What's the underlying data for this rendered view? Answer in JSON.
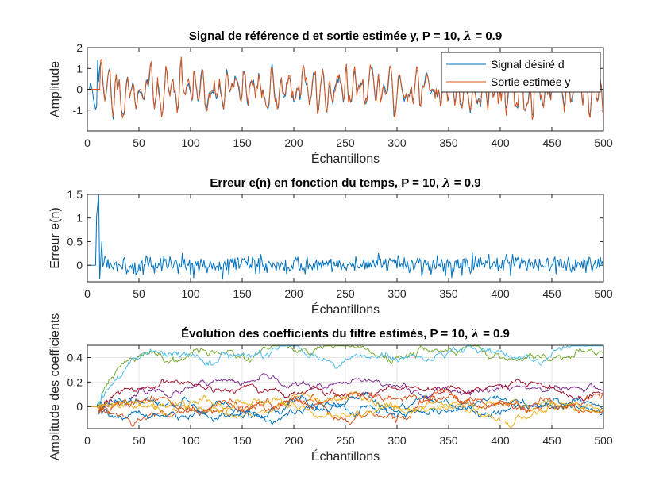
{
  "chart_data": [
    {
      "type": "line",
      "title": "Signal de référence d et sortie estimée y, P = 10, λ = 0.9",
      "xlabel": "Échantillons",
      "ylabel": "Amplitude",
      "xlim": [
        0,
        500
      ],
      "ylim": [
        -2,
        2
      ],
      "xticks": [
        0,
        50,
        100,
        150,
        200,
        250,
        300,
        350,
        400,
        450,
        500
      ],
      "yticks": [
        -1,
        0,
        1,
        2
      ],
      "grid": false,
      "legend": {
        "placement": "top-right",
        "entries": [
          "Signal désiré d",
          "Sortie estimée y"
        ]
      },
      "series": [
        {
          "name": "Signal désiré d",
          "color": "#0072BD",
          "generator": {
            "kind": "ar_signal",
            "seed": 11,
            "n": 500,
            "amp": 0.75,
            "noise": 0.3,
            "spike_at": 10,
            "spike": 1.4
          }
        },
        {
          "name": "Sortie estimée y",
          "color": "#D95319",
          "generator": {
            "kind": "ar_signal",
            "seed": 11,
            "n": 500,
            "amp": 0.75,
            "noise": 0.3,
            "start": 13,
            "lag_jitter": 0.12
          }
        }
      ]
    },
    {
      "type": "line",
      "title": "Erreur e(n) en fonction du temps, P = 10, λ = 0.9",
      "xlabel": "Échantillons",
      "ylabel": "Erreur e(n)",
      "xlim": [
        0,
        500
      ],
      "ylim": [
        -0.35,
        1.5
      ],
      "xticks": [
        0,
        50,
        100,
        150,
        200,
        250,
        300,
        350,
        400,
        450,
        500
      ],
      "yticks": [
        0,
        0.5,
        1,
        1.5
      ],
      "grid": false,
      "series": [
        {
          "name": "",
          "color": "#0072BD",
          "generator": {
            "kind": "error",
            "seed": 5,
            "n": 500,
            "spike_at": 11,
            "spike": 1.5,
            "noise": 0.1,
            "mean": 0.02
          }
        }
      ]
    },
    {
      "type": "line",
      "title": "Évolution des coefficients du filtre estimés, P = 10, λ = 0.9",
      "xlabel": "Échantillons",
      "ylabel": "Amplitude des coefficients",
      "xlim": [
        0,
        500
      ],
      "ylim": [
        -0.18,
        0.5
      ],
      "xticks": [
        0,
        50,
        100,
        150,
        200,
        250,
        300,
        350,
        400,
        450,
        500
      ],
      "yticks": [
        0,
        0.2,
        0.4
      ],
      "grid": true,
      "series": [
        {
          "name": "",
          "color": "#77AC30",
          "generator": {
            "kind": "coef",
            "seed": 21,
            "target": 0.45,
            "start": 10,
            "rise": 20,
            "noise": 0.012
          }
        },
        {
          "name": "",
          "color": "#4DBEEE",
          "generator": {
            "kind": "coef",
            "seed": 22,
            "target": 0.44,
            "start": 10,
            "rise": 30,
            "noise": 0.012
          }
        },
        {
          "name": "",
          "color": "#7E2F8E",
          "generator": {
            "kind": "coef",
            "seed": 23,
            "target": 0.14,
            "start": 10,
            "rise": 15,
            "noise": 0.01
          }
        },
        {
          "name": "",
          "color": "#A2142F",
          "generator": {
            "kind": "coef",
            "seed": 24,
            "target": 0.11,
            "start": 10,
            "rise": 15,
            "noise": 0.01
          }
        },
        {
          "name": "",
          "color": "#0072BD",
          "generator": {
            "kind": "coef",
            "seed": 25,
            "target": -0.01,
            "start": 10,
            "rise": 10,
            "noise": 0.012
          }
        },
        {
          "name": "",
          "color": "#D95319",
          "generator": {
            "kind": "coef",
            "seed": 26,
            "target": 0.0,
            "start": 10,
            "rise": 10,
            "noise": 0.012
          }
        },
        {
          "name": "",
          "color": "#EDB120",
          "generator": {
            "kind": "coef",
            "seed": 27,
            "target": -0.02,
            "start": 10,
            "rise": 35,
            "noise": 0.012
          }
        },
        {
          "name": "",
          "color": "#0072BD",
          "generator": {
            "kind": "coef",
            "seed": 28,
            "target": -0.03,
            "start": 10,
            "rise": 10,
            "noise": 0.012
          }
        },
        {
          "name": "",
          "color": "#D95319",
          "generator": {
            "kind": "coef",
            "seed": 29,
            "target": 0.01,
            "start": 10,
            "rise": 10,
            "noise": 0.012
          }
        },
        {
          "name": "",
          "color": "#EDB120",
          "generator": {
            "kind": "coef",
            "seed": 30,
            "target": -0.01,
            "start": 10,
            "rise": 25,
            "noise": 0.012
          }
        }
      ]
    }
  ]
}
